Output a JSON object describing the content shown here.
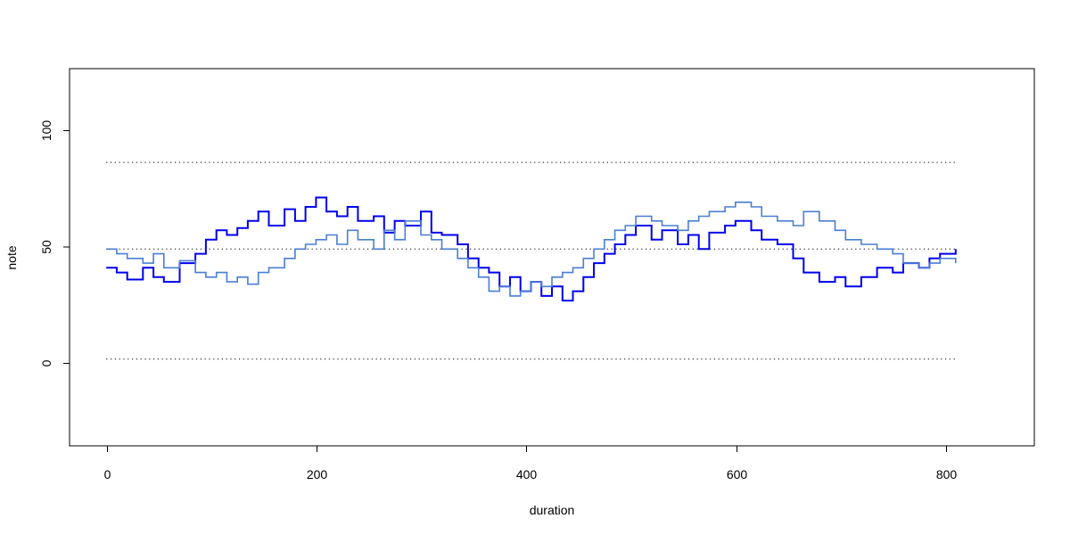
{
  "chart_data": {
    "type": "line",
    "title": "",
    "xlabel": "duration",
    "ylabel": "note",
    "xlim": [
      -35,
      885
    ],
    "ylim": [
      -36,
      125
    ],
    "x_ticks": [
      "0",
      "200",
      "400",
      "600",
      "800"
    ],
    "y_ticks": [
      "0",
      "50",
      "100"
    ],
    "grid": false,
    "legend": "none",
    "reference_lines": [
      {
        "y": 85,
        "x_start": 0,
        "x_end": 810,
        "style": "dotted"
      },
      {
        "y": 48,
        "x_start": 0,
        "x_end": 810,
        "style": "dotted"
      },
      {
        "y": 1,
        "x_start": 0,
        "x_end": 810,
        "style": "dotted"
      }
    ],
    "series": [
      {
        "color": "#0000ee",
        "step": true,
        "x": [
          0,
          10,
          20,
          35,
          45,
          55,
          70,
          85,
          95,
          105,
          115,
          125,
          135,
          145,
          155,
          170,
          180,
          190,
          200,
          210,
          220,
          230,
          240,
          255,
          265,
          275,
          285,
          300,
          310,
          320,
          335,
          345,
          355,
          365,
          375,
          385,
          395,
          405,
          415,
          425,
          435,
          445,
          455,
          465,
          475,
          485,
          495,
          505,
          520,
          530,
          545,
          555,
          565,
          575,
          590,
          600,
          615,
          625,
          640,
          655,
          665,
          680,
          695,
          705,
          720,
          735,
          750,
          760,
          775,
          785,
          795,
          810
        ],
        "y": [
          40,
          38,
          35,
          40,
          36,
          34,
          42,
          46,
          52,
          56,
          54,
          57,
          60,
          64,
          58,
          65,
          60,
          66,
          70,
          64,
          62,
          66,
          60,
          62,
          55,
          60,
          58,
          64,
          55,
          54,
          50,
          44,
          40,
          38,
          32,
          36,
          30,
          34,
          28,
          32,
          26,
          30,
          36,
          42,
          46,
          50,
          54,
          58,
          52,
          56,
          50,
          54,
          48,
          55,
          58,
          60,
          56,
          52,
          50,
          44,
          38,
          34,
          36,
          32,
          36,
          40,
          38,
          42,
          40,
          44,
          46,
          48
        ]
      },
      {
        "color": "#4a7ed6",
        "step": true,
        "x": [
          0,
          10,
          20,
          35,
          45,
          55,
          70,
          85,
          95,
          105,
          115,
          125,
          135,
          145,
          155,
          170,
          180,
          190,
          200,
          210,
          220,
          230,
          240,
          255,
          265,
          275,
          285,
          300,
          310,
          320,
          335,
          345,
          355,
          365,
          375,
          385,
          395,
          405,
          415,
          425,
          435,
          445,
          455,
          465,
          475,
          485,
          495,
          505,
          520,
          530,
          545,
          555,
          565,
          575,
          590,
          600,
          615,
          625,
          640,
          655,
          665,
          680,
          695,
          705,
          720,
          735,
          750,
          760,
          775,
          785,
          795,
          810
        ],
        "y": [
          48,
          46,
          44,
          42,
          46,
          40,
          43,
          38,
          36,
          38,
          34,
          36,
          33,
          38,
          40,
          44,
          48,
          50,
          52,
          54,
          50,
          56,
          52,
          48,
          56,
          52,
          60,
          54,
          52,
          48,
          44,
          40,
          36,
          30,
          32,
          28,
          30,
          34,
          32,
          36,
          38,
          40,
          44,
          48,
          52,
          56,
          58,
          62,
          60,
          58,
          56,
          60,
          62,
          64,
          66,
          68,
          66,
          62,
          60,
          58,
          64,
          60,
          56,
          52,
          50,
          48,
          46,
          42,
          40,
          42,
          44,
          42
        ]
      }
    ]
  }
}
